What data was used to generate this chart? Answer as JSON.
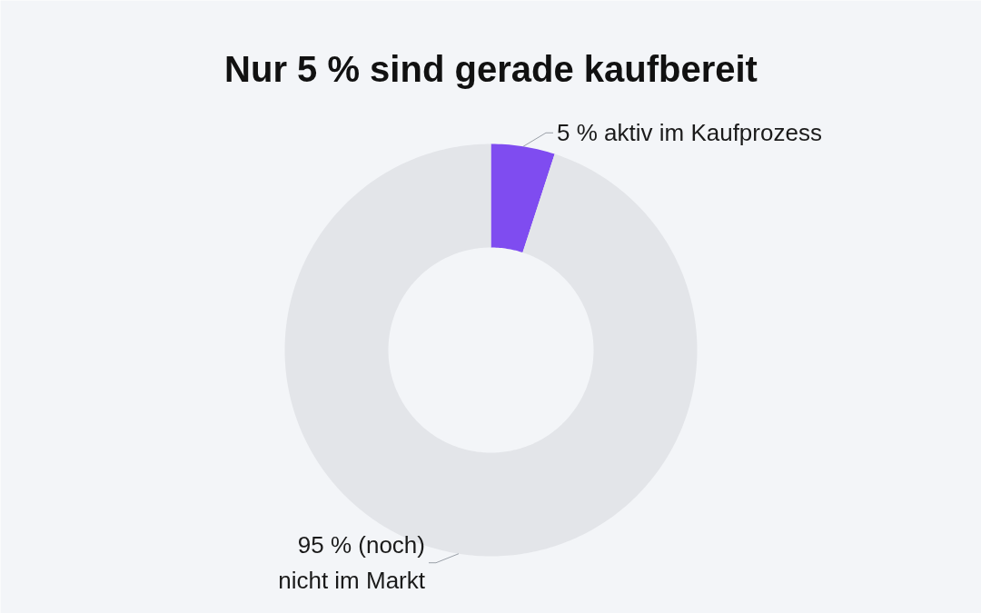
{
  "chart_data": {
    "type": "donut",
    "title": "Nur 5 % sind gerade kaufbereit",
    "categories": [
      "5 % aktiv im Kaufprozess",
      "95 % (noch)\nnicht im Markt"
    ],
    "values": [
      5,
      95
    ],
    "colors": [
      "#7f4cf0",
      "#e3e5e9"
    ]
  }
}
